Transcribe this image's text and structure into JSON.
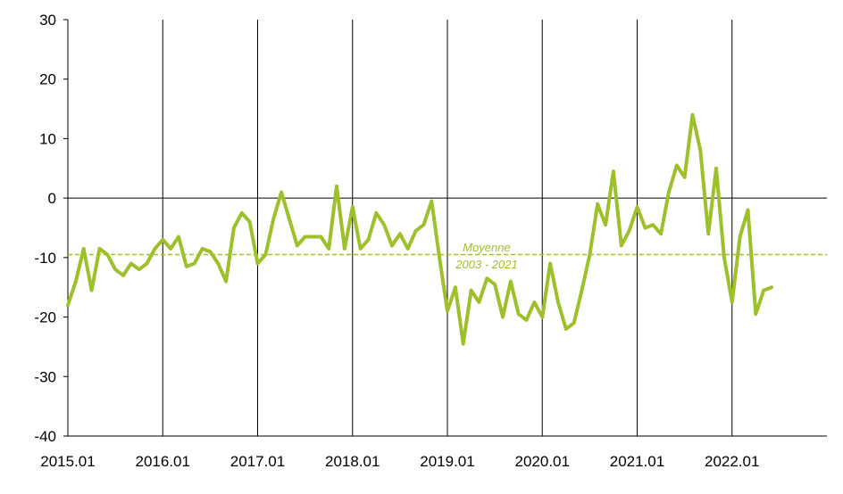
{
  "chart_data": {
    "type": "line",
    "x_tick_labels": [
      "2015.01",
      "2016.01",
      "2017.01",
      "2018.01",
      "2019.01",
      "2020.01",
      "2021.01",
      "2022.01"
    ],
    "y_tick_labels": [
      "30",
      "20",
      "10",
      "0",
      "-10",
      "-20",
      "-30",
      "-40"
    ],
    "ylim": [
      -40,
      30
    ],
    "y_ticks": [
      30,
      20,
      10,
      0,
      -10,
      -20,
      -30,
      -40
    ],
    "grid": "vertical lines at each year",
    "series": [
      {
        "start": "2015.01",
        "frequency": "monthly",
        "values": [
          -18,
          -14,
          -8.5,
          -15.5,
          -8.5,
          -9.5,
          -12,
          -13,
          -11,
          -12,
          -11,
          -8.5,
          -7,
          -8.5,
          -6.5,
          -11.5,
          -11,
          -8.5,
          -9,
          -11,
          -14,
          -5,
          -2.5,
          -4,
          -11,
          -9.5,
          -3.5,
          1,
          -3.5,
          -8,
          -6.5,
          -6.5,
          -6.5,
          -8.5,
          2,
          -8.5,
          -1.5,
          -8.5,
          -7,
          -2.5,
          -4.5,
          -8,
          -6,
          -8.5,
          -5.5,
          -4.5,
          -0.5,
          -10,
          -19,
          -15,
          -24.5,
          -15.5,
          -17.5,
          -13.5,
          -14.5,
          -20,
          -14,
          -19.5,
          -20.5,
          -17.5,
          -20,
          -11,
          -17.5,
          -22,
          -21,
          -15.5,
          -9.5,
          -1,
          -4.5,
          4.5,
          -8,
          -5.5,
          -1.5,
          -5,
          -4.5,
          -6,
          1,
          5.5,
          3.5,
          14,
          8,
          -6,
          5,
          -10,
          -17.5,
          -6.5,
          -2,
          -19.5,
          -15.5,
          -15
        ]
      }
    ],
    "reference_line": {
      "value": -9.5,
      "label_line1": "Moyenne",
      "label_line2": "2003 - 2021"
    },
    "colors": {
      "series": "#9dc02b",
      "reference": "#9dc02b",
      "axis": "#000000"
    }
  }
}
